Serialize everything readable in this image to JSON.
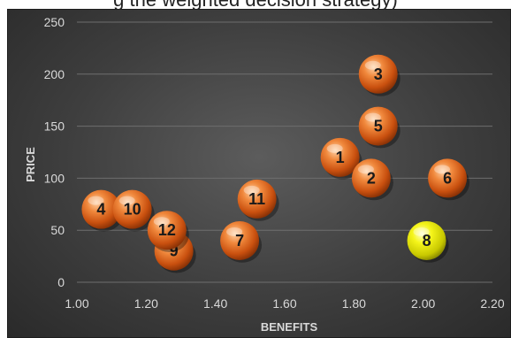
{
  "caption": "g the weighted decision strategy)",
  "chart_data": {
    "type": "scatter",
    "xlabel": "BENEFITS",
    "ylabel": "PRICE",
    "xlim": [
      1.0,
      2.2
    ],
    "ylim": [
      0,
      250
    ],
    "x_ticks": [
      "1.00",
      "1.20",
      "1.40",
      "1.60",
      "1.80",
      "2.00",
      "2.20"
    ],
    "y_ticks": [
      "0",
      "50",
      "100",
      "150",
      "200",
      "250"
    ],
    "grid": "horizontal",
    "points": [
      {
        "label": "1",
        "x": 1.76,
        "y": 120,
        "color": "#e0621a"
      },
      {
        "label": "2",
        "x": 1.85,
        "y": 100,
        "color": "#e0621a"
      },
      {
        "label": "3",
        "x": 1.87,
        "y": 200,
        "color": "#e0621a"
      },
      {
        "label": "4",
        "x": 1.07,
        "y": 70,
        "color": "#e0621a"
      },
      {
        "label": "5",
        "x": 1.87,
        "y": 150,
        "color": "#e0621a"
      },
      {
        "label": "6",
        "x": 2.07,
        "y": 100,
        "color": "#e0621a"
      },
      {
        "label": "7",
        "x": 1.47,
        "y": 40,
        "color": "#e0621a"
      },
      {
        "label": "8",
        "x": 2.01,
        "y": 40,
        "color": "#e8e800"
      },
      {
        "label": "9",
        "x": 1.28,
        "y": 30,
        "color": "#e0621a"
      },
      {
        "label": "10",
        "x": 1.16,
        "y": 70,
        "color": "#e0621a"
      },
      {
        "label": "11",
        "x": 1.52,
        "y": 80,
        "color": "#e0621a"
      },
      {
        "label": "12",
        "x": 1.26,
        "y": 50,
        "color": "#e0621a"
      }
    ]
  }
}
